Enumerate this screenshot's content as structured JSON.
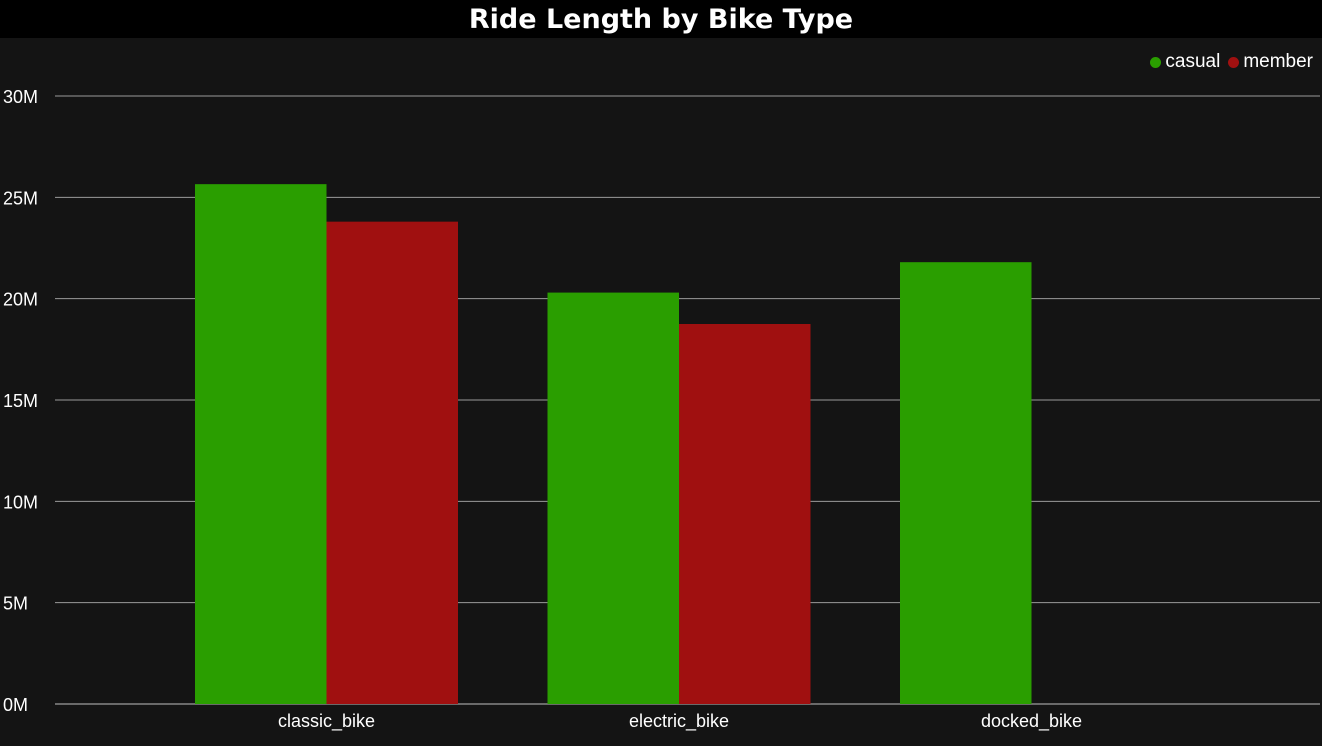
{
  "chart_data": {
    "type": "bar",
    "title": "Ride Length by Bike Type",
    "categories": [
      "classic_bike",
      "electric_bike",
      "docked_bike"
    ],
    "series": [
      {
        "name": "casual",
        "color": "#2a9e00",
        "values": [
          25.65,
          20.3,
          21.8
        ]
      },
      {
        "name": "member",
        "color": "#a01010",
        "values": [
          23.8,
          18.75,
          null
        ]
      }
    ],
    "xlabel": "",
    "ylabel": "",
    "ylim": [
      0,
      30
    ],
    "yticks": [
      0,
      5,
      10,
      15,
      20,
      25,
      30
    ],
    "ytick_labels": [
      "0M",
      "5M",
      "10M",
      "15M",
      "20M",
      "25M",
      "30M"
    ],
    "grid": true,
    "legend_position": "top-right"
  }
}
